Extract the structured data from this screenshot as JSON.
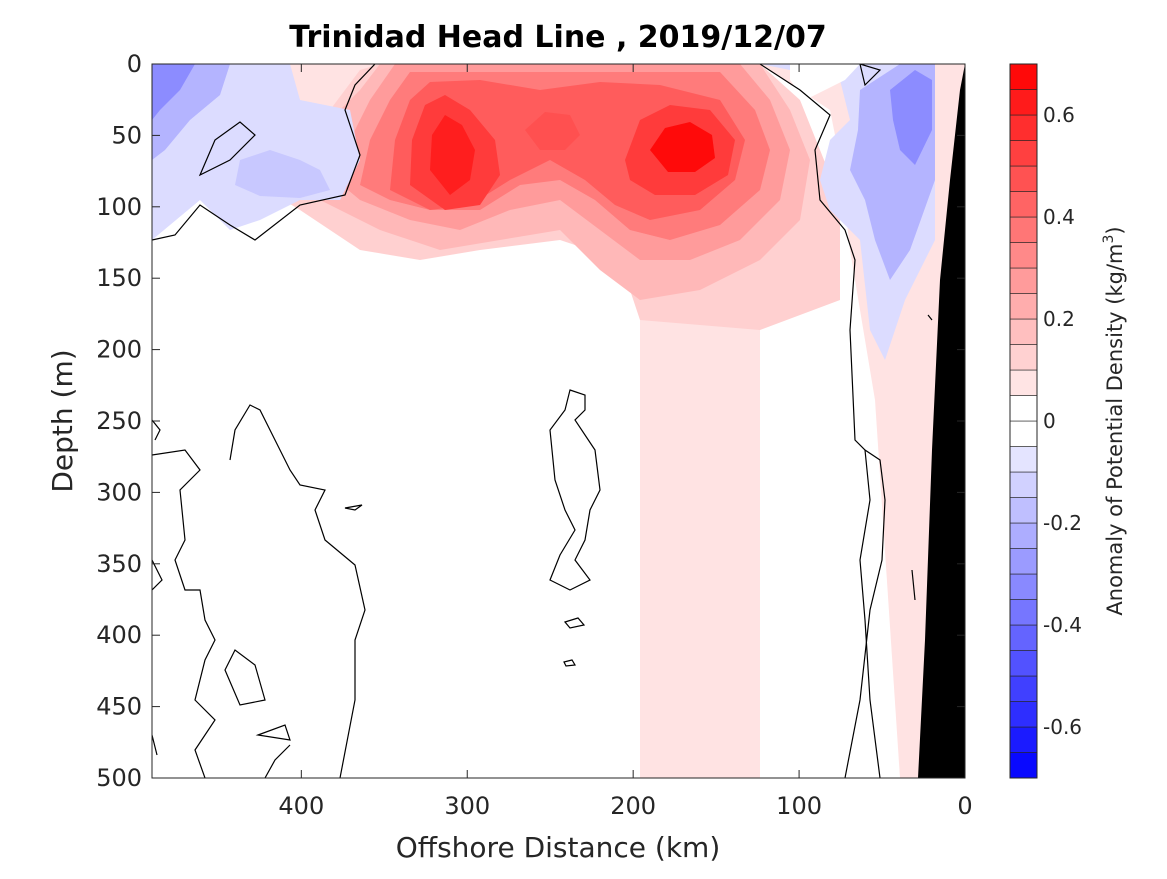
{
  "chart_data": {
    "type": "heatmap",
    "title": "Trinidad Head Line , 2019/12/07",
    "xlabel": "Offshore Distance (km)",
    "ylabel": "Depth (m)",
    "colorbar_label": "Anomaly of Potential Density (kg/m",
    "colorbar_label_sup": "3",
    "colorbar_label_end": ")",
    "x_ticks": [
      "400",
      "300",
      "200",
      "100",
      "0"
    ],
    "y_ticks": [
      "0",
      "50",
      "100",
      "150",
      "200",
      "250",
      "300",
      "350",
      "400",
      "450",
      "500"
    ],
    "colorbar_ticks": [
      "0.6",
      "0.4",
      "0.2",
      "0",
      "-0.2",
      "-0.4",
      "-0.6"
    ],
    "colorbar_tick_values": [
      0.6,
      0.4,
      0.2,
      0,
      -0.2,
      -0.4,
      -0.6
    ],
    "xlim": [
      490,
      0
    ],
    "ylim": [
      0,
      500
    ],
    "clim": [
      -0.7,
      0.7
    ],
    "contour_interval": 0.05,
    "colormap": "blue-white-red",
    "bathymetry_color": "#000000",
    "features": [
      {
        "kind": "positive",
        "center_km": 305,
        "center_depth_m": 70,
        "peak": 0.62
      },
      {
        "kind": "positive",
        "center_km": 165,
        "center_depth_m": 60,
        "peak": 0.7
      },
      {
        "kind": "negative",
        "center_km": 480,
        "center_depth_m": 30,
        "peak": -0.25
      },
      {
        "kind": "negative",
        "center_km": 40,
        "center_depth_m": 60,
        "peak": -0.28
      }
    ]
  }
}
